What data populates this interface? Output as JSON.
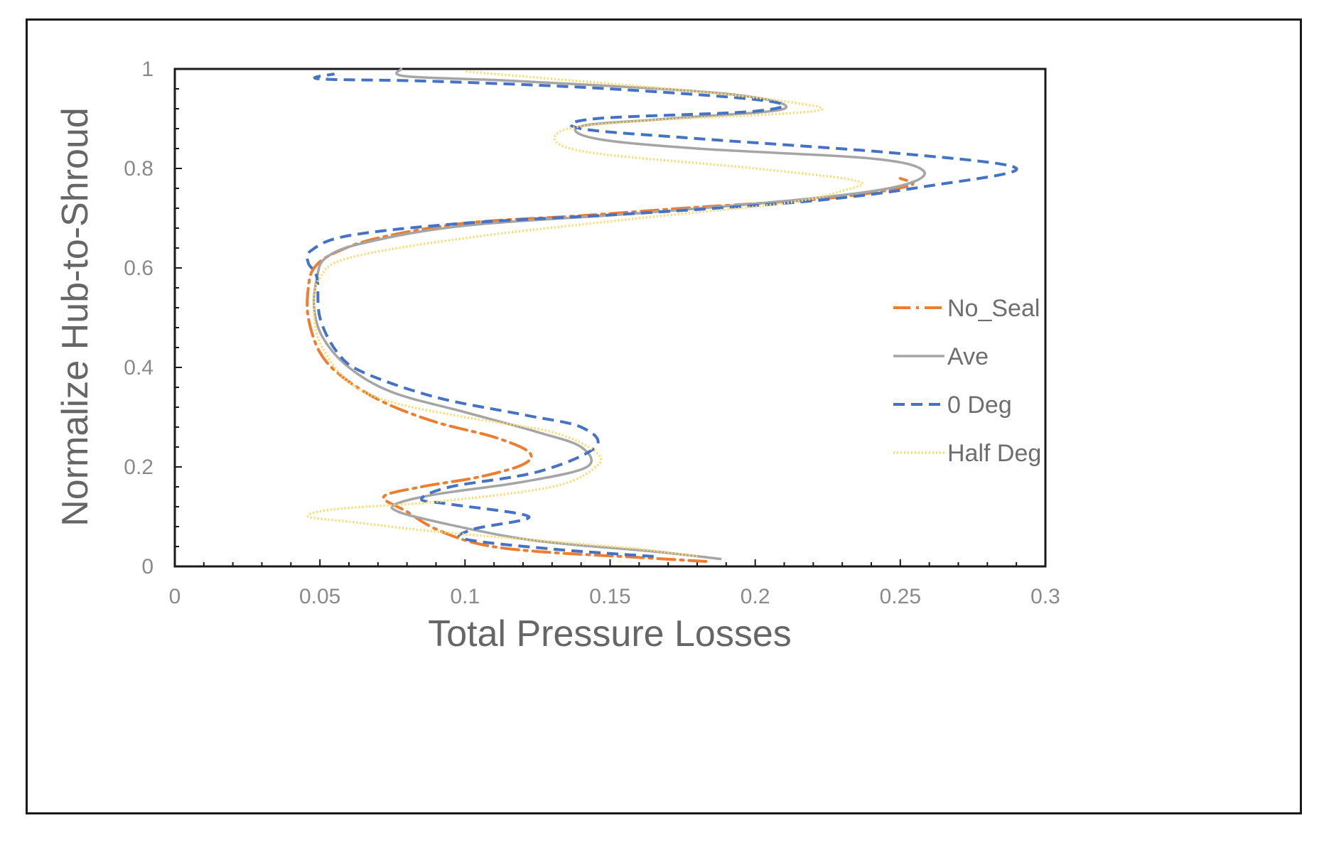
{
  "chart_data": {
    "type": "line",
    "title": "",
    "xlabel": "Total Pressure Losses",
    "ylabel": "Normalize Hub-to-Shroud",
    "xlim": [
      0,
      0.3
    ],
    "ylim": [
      0,
      1
    ],
    "x_ticks": [
      "0",
      "0.05",
      "0.1",
      "0.15",
      "0.2",
      "0.25",
      "0.3"
    ],
    "y_ticks": [
      "0",
      "0.2",
      "0.4",
      "0.6",
      "0.8",
      "1"
    ],
    "grid": false,
    "legend_position": "right",
    "series": [
      {
        "name": "No_Seal",
        "color": "#ED7D31",
        "style": "dash-dot",
        "points": [
          [
            0.183,
            0.01
          ],
          [
            0.16,
            0.018
          ],
          [
            0.125,
            0.03
          ],
          [
            0.105,
            0.045
          ],
          [
            0.09,
            0.075
          ],
          [
            0.08,
            0.11
          ],
          [
            0.072,
            0.14
          ],
          [
            0.085,
            0.16
          ],
          [
            0.105,
            0.18
          ],
          [
            0.12,
            0.205
          ],
          [
            0.122,
            0.23
          ],
          [
            0.11,
            0.26
          ],
          [
            0.09,
            0.29
          ],
          [
            0.072,
            0.33
          ],
          [
            0.058,
            0.38
          ],
          [
            0.05,
            0.43
          ],
          [
            0.046,
            0.5
          ],
          [
            0.046,
            0.56
          ],
          [
            0.048,
            0.6
          ],
          [
            0.055,
            0.63
          ],
          [
            0.07,
            0.66
          ],
          [
            0.1,
            0.69
          ],
          [
            0.14,
            0.705
          ],
          [
            0.175,
            0.72
          ],
          [
            0.225,
            0.74
          ],
          [
            0.253,
            0.765
          ],
          [
            0.25,
            0.78
          ]
        ]
      },
      {
        "name": "Ave",
        "color": "#A5A5A5",
        "style": "solid",
        "points": [
          [
            0.188,
            0.015
          ],
          [
            0.165,
            0.03
          ],
          [
            0.135,
            0.045
          ],
          [
            0.115,
            0.06
          ],
          [
            0.09,
            0.09
          ],
          [
            0.077,
            0.11
          ],
          [
            0.076,
            0.125
          ],
          [
            0.09,
            0.145
          ],
          [
            0.12,
            0.17
          ],
          [
            0.142,
            0.2
          ],
          [
            0.14,
            0.24
          ],
          [
            0.125,
            0.27
          ],
          [
            0.1,
            0.31
          ],
          [
            0.075,
            0.35
          ],
          [
            0.06,
            0.4
          ],
          [
            0.051,
            0.46
          ],
          [
            0.048,
            0.52
          ],
          [
            0.049,
            0.58
          ],
          [
            0.052,
            0.62
          ],
          [
            0.065,
            0.65
          ],
          [
            0.1,
            0.685
          ],
          [
            0.16,
            0.71
          ],
          [
            0.22,
            0.74
          ],
          [
            0.25,
            0.765
          ],
          [
            0.258,
            0.795
          ],
          [
            0.24,
            0.82
          ],
          [
            0.18,
            0.84
          ],
          [
            0.145,
            0.86
          ],
          [
            0.14,
            0.885
          ],
          [
            0.17,
            0.9
          ],
          [
            0.21,
            0.92
          ],
          [
            0.19,
            0.95
          ],
          [
            0.12,
            0.975
          ],
          [
            0.08,
            0.985
          ],
          [
            0.078,
            1.0
          ]
        ]
      },
      {
        "name": "0 Deg",
        "color": "#4472C4",
        "style": "dash",
        "points": [
          [
            0.165,
            0.02
          ],
          [
            0.13,
            0.035
          ],
          [
            0.1,
            0.055
          ],
          [
            0.103,
            0.075
          ],
          [
            0.122,
            0.1
          ],
          [
            0.095,
            0.125
          ],
          [
            0.085,
            0.135
          ],
          [
            0.095,
            0.16
          ],
          [
            0.125,
            0.19
          ],
          [
            0.145,
            0.24
          ],
          [
            0.14,
            0.28
          ],
          [
            0.12,
            0.305
          ],
          [
            0.09,
            0.34
          ],
          [
            0.065,
            0.39
          ],
          [
            0.056,
            0.43
          ],
          [
            0.05,
            0.5
          ],
          [
            0.049,
            0.58
          ],
          [
            0.046,
            0.61
          ],
          [
            0.047,
            0.635
          ],
          [
            0.06,
            0.665
          ],
          [
            0.1,
            0.69
          ],
          [
            0.16,
            0.71
          ],
          [
            0.22,
            0.735
          ],
          [
            0.26,
            0.765
          ],
          [
            0.29,
            0.8
          ],
          [
            0.25,
            0.83
          ],
          [
            0.18,
            0.86
          ],
          [
            0.14,
            0.88
          ],
          [
            0.145,
            0.9
          ],
          [
            0.2,
            0.915
          ],
          [
            0.205,
            0.935
          ],
          [
            0.15,
            0.96
          ],
          [
            0.09,
            0.975
          ],
          [
            0.05,
            0.98
          ],
          [
            0.055,
            0.99
          ]
        ]
      },
      {
        "name": "Half Deg",
        "color": "#FFD966",
        "style": "dot",
        "points": [
          [
            0.18,
            0.02
          ],
          [
            0.16,
            0.035
          ],
          [
            0.13,
            0.05
          ],
          [
            0.09,
            0.07
          ],
          [
            0.06,
            0.09
          ],
          [
            0.046,
            0.1
          ],
          [
            0.055,
            0.115
          ],
          [
            0.09,
            0.13
          ],
          [
            0.13,
            0.16
          ],
          [
            0.145,
            0.2
          ],
          [
            0.145,
            0.23
          ],
          [
            0.13,
            0.27
          ],
          [
            0.1,
            0.3
          ],
          [
            0.075,
            0.33
          ],
          [
            0.06,
            0.37
          ],
          [
            0.05,
            0.45
          ],
          [
            0.048,
            0.52
          ],
          [
            0.05,
            0.58
          ],
          [
            0.06,
            0.62
          ],
          [
            0.1,
            0.66
          ],
          [
            0.16,
            0.7
          ],
          [
            0.21,
            0.73
          ],
          [
            0.23,
            0.755
          ],
          [
            0.235,
            0.775
          ],
          [
            0.2,
            0.8
          ],
          [
            0.14,
            0.835
          ],
          [
            0.133,
            0.875
          ],
          [
            0.16,
            0.895
          ],
          [
            0.22,
            0.915
          ],
          [
            0.21,
            0.935
          ],
          [
            0.17,
            0.96
          ],
          [
            0.12,
            0.985
          ],
          [
            0.1,
            0.995
          ]
        ]
      }
    ]
  }
}
